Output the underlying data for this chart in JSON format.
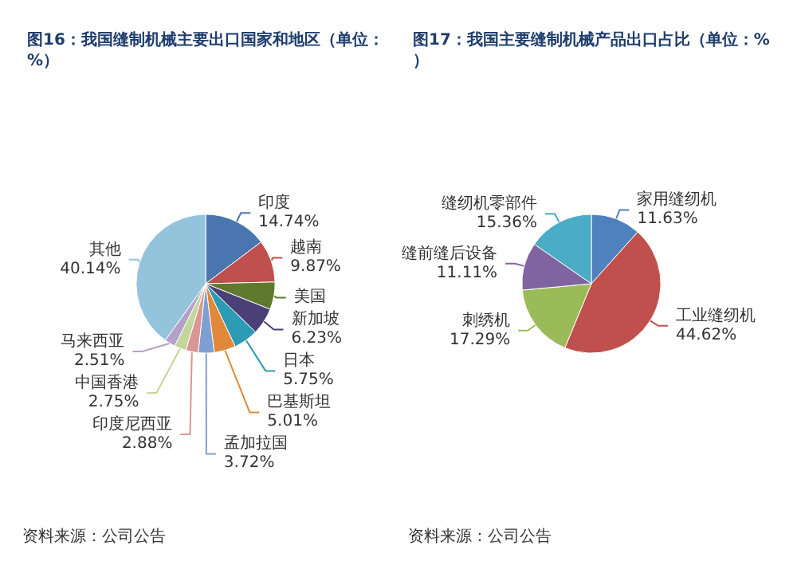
{
  "chart_data": [
    {
      "type": "pie",
      "title": "图16：我国缝制机械主要出口国家和地区（单位：%）",
      "categories": [
        "印度",
        "越南",
        "美国",
        "新加坡",
        "日本",
        "巴基斯坦",
        "孟加拉国",
        "印度尼西亚",
        "中国香港",
        "马来西亚",
        "其他"
      ],
      "values": [
        14.74,
        9.87,
        6.4,
        6.23,
        5.75,
        5.01,
        3.72,
        2.88,
        2.75,
        2.51,
        40.14
      ],
      "value_labels": [
        "14.74%",
        "9.87%",
        null,
        "6.23%",
        "5.75%",
        "5.01%",
        "3.72%",
        "2.88%",
        "2.75%",
        "2.51%",
        "40.14%"
      ],
      "colors": [
        "#4a76b0",
        "#c0504d",
        "#5f7a2e",
        "#4b3f78",
        "#2e9bb5",
        "#e2883a",
        "#7f9fd0",
        "#d99694",
        "#c3d69b",
        "#b3a2c7",
        "#93c4dc"
      ],
      "annotations": [
        "资料来源：公司公告"
      ]
    },
    {
      "type": "pie",
      "title": "图17：我国主要缝制机械产品出口占比（单位：%）",
      "categories": [
        "家用缝纫机",
        "工业缝纫机",
        "刺绣机",
        "缝前缝后设备",
        "缝纫机零部件"
      ],
      "values": [
        11.63,
        44.62,
        17.29,
        11.11,
        15.36
      ],
      "value_labels": [
        "11.63%",
        "44.62%",
        "17.29%",
        "11.11%",
        "15.36%"
      ],
      "colors": [
        "#4f81bd",
        "#c0504d",
        "#9bbb59",
        "#8064a2",
        "#4bacc6"
      ],
      "annotations": [
        "资料来源：公司公告"
      ]
    }
  ]
}
